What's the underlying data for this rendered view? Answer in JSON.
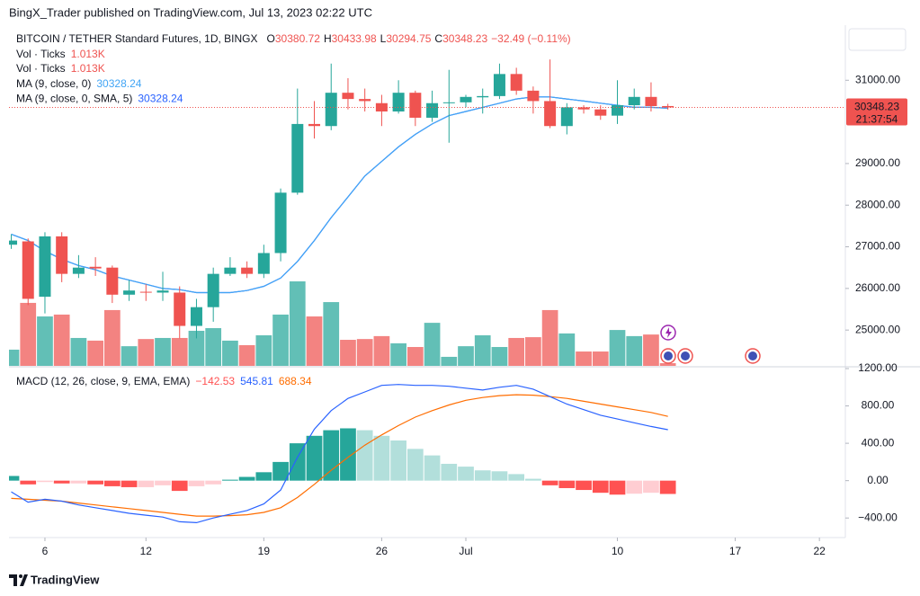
{
  "header": "BingX_Trader published on TradingView.com, Jul 13, 2023 02:22 UTC",
  "footer": "TradingView",
  "chart_data": [
    {
      "type": "candlestick",
      "title": "BITCOIN / TETHER Standard Futures, 1D, BINGX",
      "ohlc_labels": [
        "O",
        "H",
        "L",
        "C"
      ],
      "change": "−32.49 (−0.11%)",
      "countdown": "21:37:54",
      "up_color": "#26a69a",
      "down_color": "#ef5350",
      "x": [
        "2023-06-04",
        "2023-06-05",
        "2023-06-06",
        "2023-06-07",
        "2023-06-08",
        "2023-06-09",
        "2023-06-10",
        "2023-06-11",
        "2023-06-12",
        "2023-06-13",
        "2023-06-14",
        "2023-06-15",
        "2023-06-16",
        "2023-06-17",
        "2023-06-18",
        "2023-06-19",
        "2023-06-20",
        "2023-06-21",
        "2023-06-22",
        "2023-06-23",
        "2023-06-24",
        "2023-06-25",
        "2023-06-26",
        "2023-06-27",
        "2023-06-28",
        "2023-06-29",
        "2023-06-30",
        "2023-07-01",
        "2023-07-02",
        "2023-07-03",
        "2023-07-04",
        "2023-07-05",
        "2023-07-06",
        "2023-07-07",
        "2023-07-08",
        "2023-07-09",
        "2023-07-10",
        "2023-07-11",
        "2023-07-12",
        "2023-07-13"
      ],
      "open": [
        27050,
        27130,
        25800,
        27250,
        26350,
        26520,
        26500,
        25850,
        25920,
        25900,
        25900,
        25100,
        25550,
        26350,
        26500,
        26350,
        26850,
        28300,
        29950,
        29900,
        30700,
        30550,
        30450,
        30250,
        30700,
        30100,
        30450,
        30470,
        30590,
        30620,
        31150,
        30750,
        30500,
        29900,
        30350,
        30300,
        30150,
        30400,
        30600,
        30380.72
      ],
      "high": [
        27300,
        27200,
        27350,
        27350,
        26800,
        26750,
        26550,
        26200,
        26100,
        26400,
        26050,
        25750,
        26500,
        26750,
        26650,
        27050,
        28400,
        30800,
        30500,
        31400,
        31050,
        30800,
        30650,
        31000,
        30750,
        30750,
        31250,
        30650,
        30800,
        31400,
        31300,
        30850,
        31500,
        30450,
        30400,
        30400,
        31000,
        30800,
        30950,
        30433.98
      ],
      "low": [
        26950,
        25600,
        25400,
        26150,
        26250,
        26300,
        25650,
        25700,
        25700,
        25700,
        24800,
        24800,
        25200,
        26300,
        26250,
        26250,
        26650,
        28250,
        29600,
        29800,
        30300,
        30250,
        29900,
        30200,
        29900,
        30000,
        29500,
        30350,
        30200,
        30550,
        30650,
        30200,
        29850,
        29700,
        30200,
        30050,
        29950,
        30300,
        30250,
        30294.75
      ],
      "close": [
        27150,
        25750,
        27250,
        26350,
        26500,
        26480,
        25850,
        25950,
        25900,
        25950,
        25100,
        25550,
        26350,
        26500,
        26350,
        26850,
        28300,
        29950,
        29900,
        30700,
        30550,
        30500,
        30250,
        30700,
        30100,
        30450,
        30470,
        30600,
        30620,
        31150,
        30750,
        30500,
        29900,
        30350,
        30300,
        30150,
        30400,
        30600,
        30380,
        30348.23
      ],
      "volume": {
        "name": "Vol · Ticks",
        "values": [
          6.1,
          23.7,
          18.6,
          19.3,
          10.5,
          9.5,
          21.0,
          7.4,
          10.1,
          10.5,
          10.5,
          13.2,
          14.2,
          9.5,
          7.8,
          11.5,
          19.3,
          31.8,
          18.6,
          24.0,
          9.8,
          10.1,
          11.2,
          8.5,
          7.1,
          16.2,
          3.4,
          7.4,
          11.5,
          7.1,
          10.5,
          10.8,
          21.0,
          12.2,
          5.4,
          5.4,
          13.5,
          11.2,
          11.8,
          1.013
        ],
        "value_labels": [
          null,
          null,
          null,
          null,
          null,
          null,
          null,
          null,
          null,
          null,
          null,
          null,
          null,
          null,
          null,
          null,
          null,
          null,
          null,
          null,
          null,
          null,
          null,
          null,
          null,
          null,
          null,
          null,
          null,
          null,
          null,
          null,
          null,
          null,
          null,
          null,
          null,
          null,
          null,
          "1.013K"
        ]
      },
      "series": [
        {
          "name": "MA (9, close, 0)",
          "color": "#42a5f5",
          "values": [
            27300,
            27150,
            26900,
            26700,
            26550,
            26450,
            26300,
            26200,
            26100,
            26000,
            25970,
            25900,
            25900,
            25900,
            25950,
            26050,
            26250,
            26650,
            27150,
            27700,
            28200,
            28700,
            29050,
            29400,
            29700,
            29950,
            30150,
            30250,
            30350,
            30450,
            30550,
            30600,
            30600,
            30550,
            30500,
            30450,
            30400,
            30350,
            30350,
            30328.24
          ]
        },
        {
          "name": "MA (9, close, 0, SMA, 5)",
          "color": "#2962ff",
          "values": [
            27300,
            27150,
            26900,
            26700,
            26550,
            26450,
            26300,
            26200,
            26100,
            26000,
            25970,
            25900,
            25900,
            25900,
            25950,
            26050,
            26250,
            26650,
            27150,
            27700,
            28200,
            28700,
            29050,
            29400,
            29700,
            29950,
            30150,
            30250,
            30350,
            30450,
            30550,
            30600,
            30600,
            30550,
            30500,
            30450,
            30400,
            30350,
            30350,
            30328.24
          ]
        }
      ],
      "xlim": [
        "2023-06-03",
        "2023-07-24"
      ],
      "xticks": [
        {
          "value": "2023-06-06",
          "label": "6"
        },
        {
          "value": "2023-06-12",
          "label": "12"
        },
        {
          "value": "2023-06-19",
          "label": "19"
        },
        {
          "value": "2023-06-26",
          "label": "26"
        },
        {
          "value": "2023-07-01",
          "label": "Jul"
        },
        {
          "value": "2023-07-10",
          "label": "10"
        },
        {
          "value": "2023-07-17",
          "label": "17"
        },
        {
          "value": "2023-07-22",
          "label": "22"
        }
      ],
      "ylim": [
        24140,
        32280
      ],
      "yticks": [
        {
          "value": 25000,
          "label": "25000.00"
        },
        {
          "value": 26000,
          "label": "26000.00"
        },
        {
          "value": 27000,
          "label": "27000.00"
        },
        {
          "value": 28000,
          "label": "28000.00"
        },
        {
          "value": 29000,
          "label": "29000.00"
        },
        {
          "value": 31000,
          "label": "31000.00"
        }
      ]
    },
    {
      "type": "macd",
      "title": "MACD (12, 26, close, 9, EMA, EMA)",
      "histogram": {
        "colors": [
          "#26a69a",
          "#b2dfdb",
          "#ffcdd2",
          "#ff5252"
        ],
        "values": [
          50,
          -40,
          -15,
          -30,
          -30,
          -40,
          -60,
          -70,
          -70,
          -50,
          -110,
          -60,
          -40,
          10,
          40,
          90,
          200,
          400,
          480,
          540,
          560,
          540,
          480,
          430,
          340,
          270,
          180,
          150,
          110,
          100,
          70,
          20,
          -50,
          -80,
          -100,
          -130,
          -150,
          -140,
          -130,
          -142.53
        ],
        "value_labels": [
          null,
          null,
          null,
          null,
          null,
          null,
          null,
          null,
          null,
          null,
          null,
          null,
          null,
          null,
          null,
          null,
          null,
          null,
          null,
          null,
          null,
          null,
          null,
          null,
          null,
          null,
          null,
          null,
          null,
          null,
          null,
          null,
          null,
          null,
          null,
          null,
          null,
          null,
          null,
          "−142.53"
        ]
      },
      "macd": {
        "color": "#2962ff",
        "values": [
          -120,
          -230,
          -200,
          -220,
          -260,
          -290,
          -320,
          -350,
          -370,
          -390,
          -440,
          -450,
          -400,
          -360,
          -320,
          -250,
          -100,
          250,
          550,
          750,
          880,
          950,
          1020,
          1030,
          1020,
          1020,
          1010,
          990,
          970,
          1000,
          1020,
          980,
          900,
          820,
          760,
          700,
          660,
          620,
          580,
          545.81
        ]
      },
      "signal": {
        "color": "#ff6d00",
        "values": [
          -190,
          -200,
          -210,
          -220,
          -240,
          -260,
          -280,
          -300,
          -320,
          -340,
          -360,
          -380,
          -380,
          -375,
          -365,
          -340,
          -290,
          -180,
          -40,
          110,
          250,
          380,
          490,
          590,
          680,
          750,
          810,
          860,
          890,
          910,
          920,
          915,
          900,
          880,
          850,
          820,
          790,
          760,
          730,
          688.34
        ]
      },
      "ylim": [
        -600,
        1200
      ],
      "yticks": [
        {
          "value": 1200,
          "label": "1200.00"
        },
        {
          "value": 800,
          "label": "800.00"
        },
        {
          "value": 400,
          "label": "400.00"
        },
        {
          "value": 0,
          "label": "0.00"
        },
        {
          "value": -400,
          "label": "−400.00"
        }
      ]
    }
  ]
}
